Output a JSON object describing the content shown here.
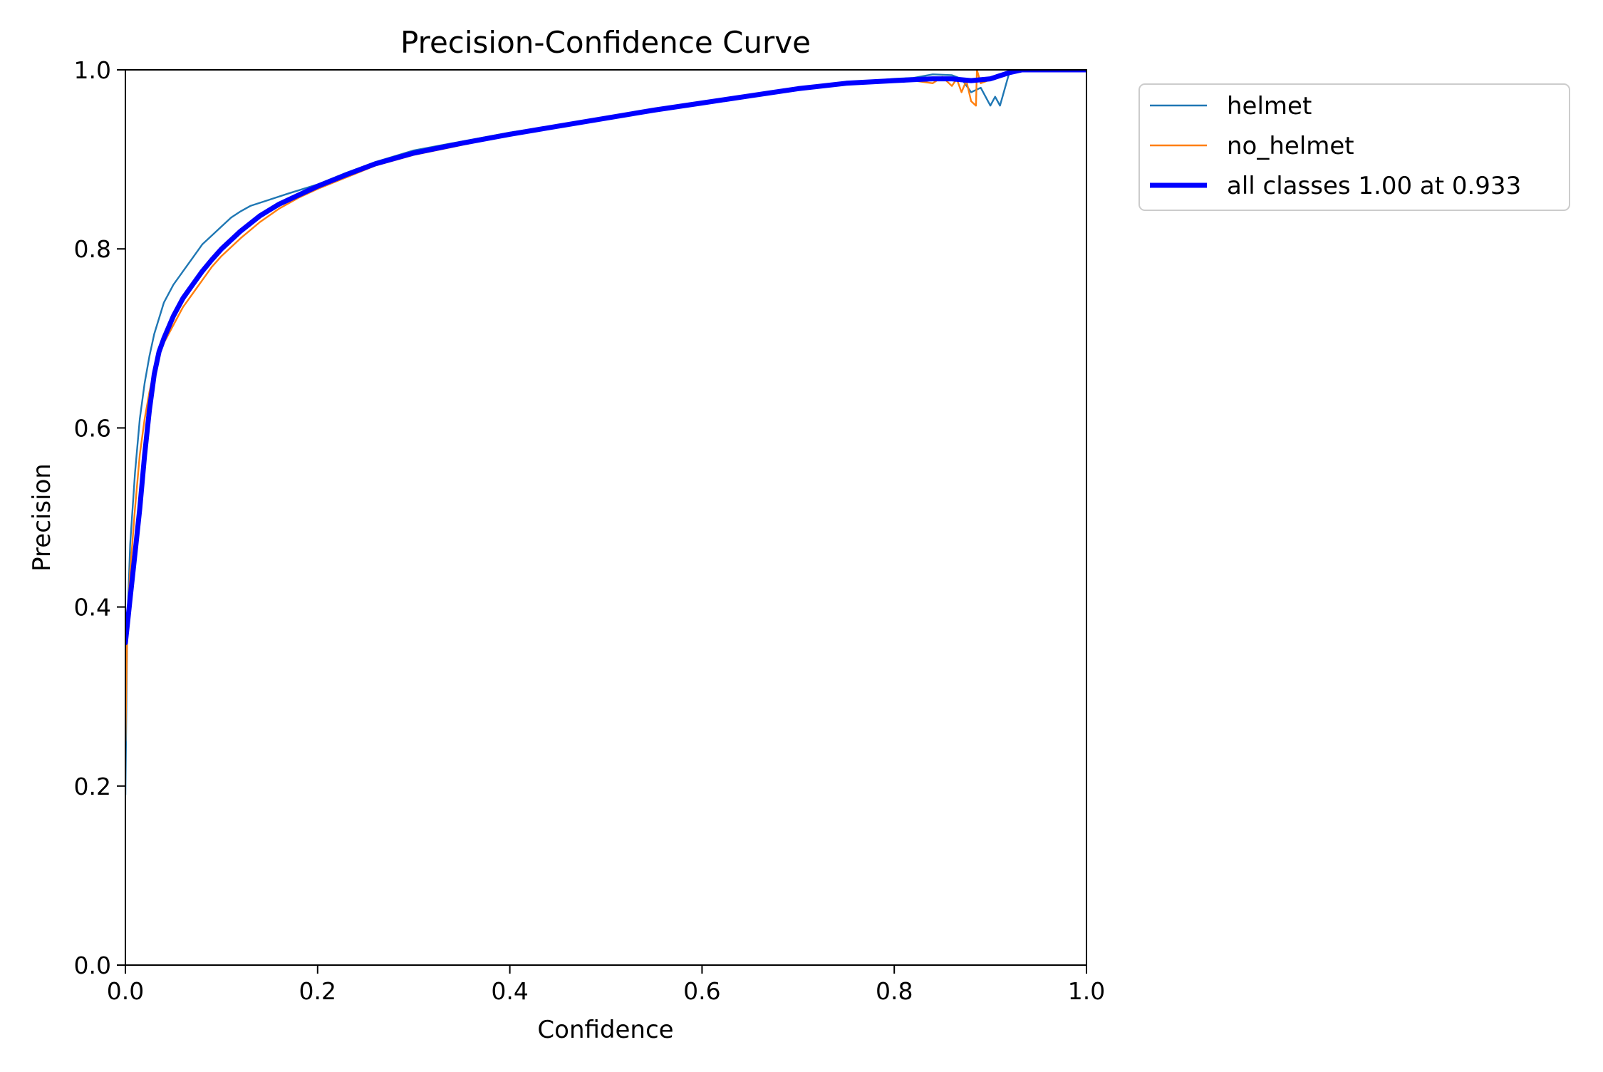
{
  "chart_data": {
    "type": "line",
    "title": "Precision-Confidence Curve",
    "xlabel": "Confidence",
    "ylabel": "Precision",
    "xlim": [
      0,
      1
    ],
    "ylim": [
      0,
      1
    ],
    "xticks": [
      0.0,
      0.2,
      0.4,
      0.6,
      0.8,
      1.0
    ],
    "yticks": [
      0.0,
      0.2,
      0.4,
      0.6,
      0.8,
      1.0
    ],
    "xtick_labels": [
      "0.0",
      "0.2",
      "0.4",
      "0.6",
      "0.8",
      "1.0"
    ],
    "ytick_labels": [
      "0.0",
      "0.2",
      "0.4",
      "0.6",
      "0.8",
      "1.0"
    ],
    "grid": false,
    "legend_position": "outside-top-right",
    "series": [
      {
        "name": "helmet",
        "color": "#1f77b4",
        "x": [
          0.0,
          0.002,
          0.005,
          0.01,
          0.015,
          0.02,
          0.025,
          0.03,
          0.04,
          0.05,
          0.06,
          0.07,
          0.08,
          0.09,
          0.1,
          0.11,
          0.12,
          0.13,
          0.15,
          0.17,
          0.2,
          0.23,
          0.26,
          0.3,
          0.35,
          0.4,
          0.45,
          0.5,
          0.55,
          0.6,
          0.65,
          0.7,
          0.75,
          0.8,
          0.82,
          0.84,
          0.86,
          0.87,
          0.88,
          0.89,
          0.9,
          0.905,
          0.91,
          0.92,
          0.94,
          0.96,
          1.0
        ],
        "y": [
          0.19,
          0.38,
          0.47,
          0.55,
          0.61,
          0.65,
          0.68,
          0.705,
          0.74,
          0.76,
          0.775,
          0.79,
          0.805,
          0.815,
          0.825,
          0.835,
          0.842,
          0.848,
          0.855,
          0.862,
          0.872,
          0.885,
          0.897,
          0.91,
          0.92,
          0.93,
          0.938,
          0.947,
          0.955,
          0.963,
          0.972,
          0.98,
          0.985,
          0.99,
          0.991,
          0.995,
          0.994,
          0.99,
          0.975,
          0.98,
          0.96,
          0.97,
          0.96,
          0.998,
          1.0,
          1.0,
          1.0
        ]
      },
      {
        "name": "no_helmet",
        "color": "#ff7f0e",
        "x": [
          0.0,
          0.002,
          0.005,
          0.01,
          0.015,
          0.02,
          0.025,
          0.03,
          0.04,
          0.05,
          0.06,
          0.07,
          0.08,
          0.09,
          0.1,
          0.12,
          0.14,
          0.16,
          0.18,
          0.2,
          0.23,
          0.26,
          0.3,
          0.35,
          0.4,
          0.45,
          0.5,
          0.55,
          0.6,
          0.65,
          0.7,
          0.75,
          0.8,
          0.82,
          0.84,
          0.85,
          0.86,
          0.865,
          0.87,
          0.875,
          0.88,
          0.885,
          0.886,
          0.89,
          0.91,
          0.93,
          0.95,
          1.0
        ],
        "y": [
          0.25,
          0.38,
          0.44,
          0.51,
          0.57,
          0.61,
          0.64,
          0.665,
          0.695,
          0.715,
          0.735,
          0.75,
          0.765,
          0.78,
          0.792,
          0.812,
          0.83,
          0.845,
          0.857,
          0.867,
          0.88,
          0.893,
          0.905,
          0.916,
          0.927,
          0.937,
          0.946,
          0.955,
          0.963,
          0.971,
          0.979,
          0.985,
          0.987,
          0.988,
          0.985,
          0.992,
          0.982,
          0.99,
          0.975,
          0.988,
          0.965,
          0.96,
          1.0,
          0.985,
          0.993,
          0.999,
          1.0,
          1.0
        ]
      },
      {
        "name": "all classes 1.00 at 0.933",
        "color": "#0000ff",
        "x": [
          0.0,
          0.002,
          0.005,
          0.01,
          0.015,
          0.02,
          0.025,
          0.03,
          0.035,
          0.04,
          0.05,
          0.06,
          0.07,
          0.08,
          0.09,
          0.1,
          0.12,
          0.14,
          0.16,
          0.18,
          0.2,
          0.23,
          0.26,
          0.3,
          0.35,
          0.4,
          0.45,
          0.5,
          0.55,
          0.6,
          0.65,
          0.7,
          0.75,
          0.8,
          0.82,
          0.84,
          0.86,
          0.88,
          0.9,
          0.92,
          0.933,
          0.95,
          1.0
        ],
        "y": [
          0.36,
          0.38,
          0.41,
          0.46,
          0.51,
          0.57,
          0.62,
          0.66,
          0.685,
          0.7,
          0.725,
          0.745,
          0.76,
          0.775,
          0.788,
          0.8,
          0.82,
          0.837,
          0.85,
          0.86,
          0.87,
          0.883,
          0.895,
          0.907,
          0.918,
          0.928,
          0.937,
          0.946,
          0.955,
          0.963,
          0.971,
          0.979,
          0.985,
          0.988,
          0.989,
          0.99,
          0.99,
          0.988,
          0.99,
          0.997,
          1.0,
          1.0,
          1.0
        ]
      }
    ]
  }
}
